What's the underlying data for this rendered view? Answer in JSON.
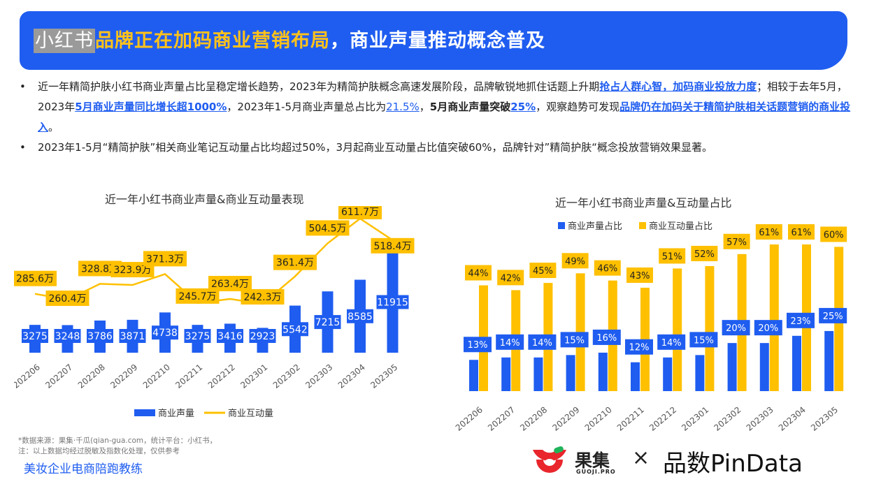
{
  "header": {
    "title_part1": "小红书",
    "title_part2": "品牌正在加码商业营销布局",
    "title_part3": "，商业声量推动概念普及"
  },
  "bullets": {
    "b1": {
      "p1": "近一年精简护肤小红书商业声量占比呈稳定增长趋势，2023年为精简护肤概念高速发展阶段，品牌敏锐地抓住话题上升期",
      "h1": "抢占人群心智，加码商业投放力度",
      "p2": "；相较于去年5月，2023年",
      "h2": "5月商业声量同比增长超1000%",
      "p3": "，2023年1-5月商业声量总占比为",
      "u1": "21.5%",
      "p4": "，",
      "b1": "5月商业声量突破",
      "h3": "25%",
      "p5": "，观察趋势可发现",
      "h4": "品牌仍在加码关于精简护肤相关话题营销的商业投入",
      "p6": "。"
    },
    "b2": "2023年1-5月“精简护肤”相关商业笔记互动量占比均超过50%，3月起商业互动量占比值突破60%，品牌针对”精简护肤“概念投放营销效果显著。"
  },
  "chart_data": [
    {
      "type": "bar",
      "title": "近一年小红书商业声量&商业互动量表现",
      "categories": [
        "202206",
        "202207",
        "202208",
        "202209",
        "202210",
        "202211",
        "202212",
        "202301",
        "202302",
        "202303",
        "202304",
        "202305"
      ],
      "series": [
        {
          "name": "商业声量",
          "kind": "bar",
          "color": "#1f5df0",
          "values": [
            3275,
            3248,
            3786,
            3871,
            4738,
            3275,
            3416,
            2923,
            5542,
            7215,
            8585,
            11915
          ],
          "labels": [
            "3275",
            "3248",
            "3786",
            "3871",
            "4738",
            "3275",
            "3416",
            "2923",
            "5542",
            "7215",
            "8585",
            "11915"
          ]
        },
        {
          "name": "商业互动量",
          "kind": "line",
          "color": "#ffc000",
          "values": [
            285.6,
            260.4,
            328.8,
            323.9,
            371.3,
            245.7,
            263.4,
            242.3,
            361.4,
            504.5,
            611.7,
            518.4
          ],
          "unit": "万",
          "labels": [
            "285.6万",
            "260.4万",
            "328.8万",
            "323.9万",
            "371.3万",
            "245.7万",
            "263.4万",
            "242.3万",
            "361.4万",
            "504.5万",
            "611.7万",
            "518.4万"
          ]
        }
      ],
      "legend": "bottom"
    },
    {
      "type": "bar",
      "title": "近一年小红书商业声量&互动量占比",
      "categories": [
        "202206",
        "202207",
        "202208",
        "202209",
        "202210",
        "202211",
        "202212",
        "202301",
        "202302",
        "202303",
        "202304",
        "202305"
      ],
      "series": [
        {
          "name": "商业声量占比",
          "color": "#1f5df0",
          "values": [
            13,
            14,
            14,
            15,
            16,
            12,
            14,
            15,
            20,
            20,
            23,
            25
          ],
          "labels": [
            "13%",
            "14%",
            "14%",
            "15%",
            "16%",
            "12%",
            "14%",
            "15%",
            "20%",
            "20%",
            "23%",
            "25%"
          ]
        },
        {
          "name": "商业互动量占比",
          "color": "#ffc000",
          "values": [
            44,
            42,
            45,
            49,
            46,
            43,
            51,
            52,
            57,
            61,
            61,
            60
          ],
          "labels": [
            "44%",
            "42%",
            "45%",
            "49%",
            "46%",
            "43%",
            "51%",
            "52%",
            "57%",
            "61%",
            "61%",
            "60%"
          ]
        }
      ],
      "unit": "%",
      "legend": "top-left"
    }
  ],
  "footer": {
    "note1": "*数据来源：果集·千瓜(qian-gua.com，统计平台：小红书，",
    "note2": "注：以上数据均经过脱敏及指数化处理，仅供参考",
    "brand": "美妆企业电商陪跑教练",
    "logo1": "果集",
    "logo1_sub": "GUOJI.PRO",
    "logo_x": "×",
    "logo2": "品数PinData"
  }
}
